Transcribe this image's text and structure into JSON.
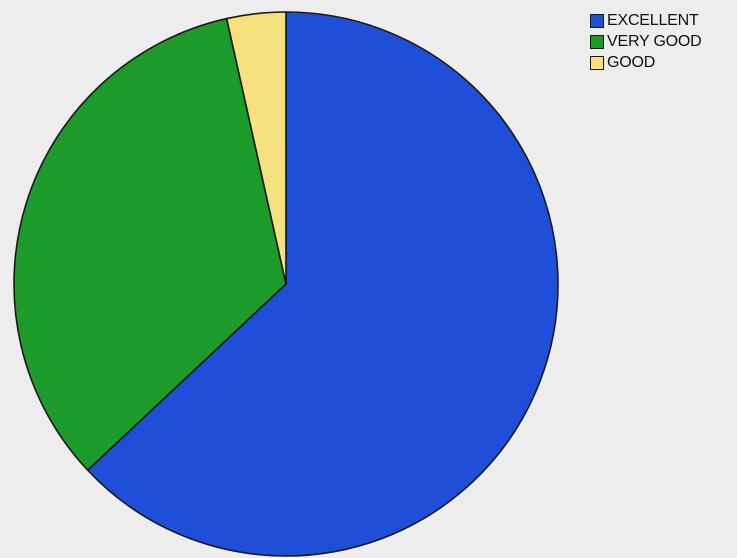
{
  "chart_data": {
    "type": "pie",
    "slices": [
      {
        "label": "EXCELLENT",
        "value": 63.0,
        "color": "#1f4fd8"
      },
      {
        "label": "VERY GOOD",
        "value": 33.5,
        "color": "#1c9a2a"
      },
      {
        "label": "GOOD",
        "value": 3.5,
        "color": "#f7e07e"
      }
    ],
    "title": "",
    "legend_position": "top-right",
    "start_angle_deg": 0,
    "direction": "clockwise"
  }
}
